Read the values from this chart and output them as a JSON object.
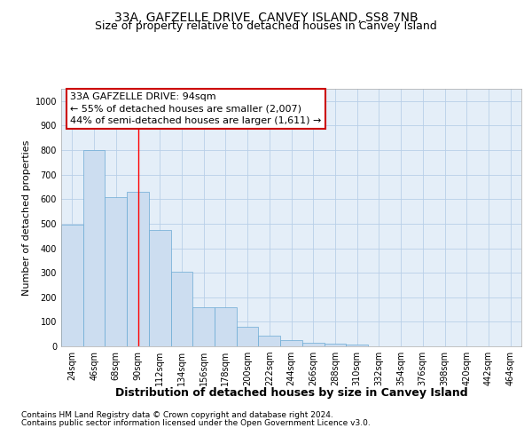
{
  "title": "33A, GAFZELLE DRIVE, CANVEY ISLAND, SS8 7NB",
  "subtitle": "Size of property relative to detached houses in Canvey Island",
  "xlabel": "Distribution of detached houses by size in Canvey Island",
  "ylabel": "Number of detached properties",
  "footnote1": "Contains HM Land Registry data © Crown copyright and database right 2024.",
  "footnote2": "Contains public sector information licensed under the Open Government Licence v3.0.",
  "bar_values": [
    495,
    800,
    610,
    630,
    475,
    305,
    160,
    160,
    78,
    45,
    25,
    15,
    10,
    8,
    0,
    0,
    0,
    0,
    0,
    0,
    0
  ],
  "categories": [
    "24sqm",
    "46sqm",
    "68sqm",
    "90sqm",
    "112sqm",
    "134sqm",
    "156sqm",
    "178sqm",
    "200sqm",
    "222sqm",
    "244sqm",
    "266sqm",
    "288sqm",
    "310sqm",
    "332sqm",
    "354sqm",
    "376sqm",
    "398sqm",
    "420sqm",
    "442sqm",
    "464sqm"
  ],
  "bar_color": "#ccddf0",
  "bar_edge_color": "#6aaad4",
  "red_line_x": 3.0,
  "annotation_line1": "33A GAFZELLE DRIVE: 94sqm",
  "annotation_line2": "← 55% of detached houses are smaller (2,007)",
  "annotation_line3": "44% of semi-detached houses are larger (1,611) →",
  "annotation_box_color": "#ffffff",
  "annotation_box_edge": "#cc0000",
  "ylim": [
    0,
    1050
  ],
  "yticks": [
    0,
    100,
    200,
    300,
    400,
    500,
    600,
    700,
    800,
    900,
    1000
  ],
  "grid_color": "#b8cfe8",
  "background_color": "#e4eef8",
  "fig_background": "#ffffff",
  "title_fontsize": 10,
  "subtitle_fontsize": 9,
  "xlabel_fontsize": 9,
  "ylabel_fontsize": 8,
  "tick_fontsize": 7,
  "annotation_fontsize": 8,
  "footnote_fontsize": 6.5
}
